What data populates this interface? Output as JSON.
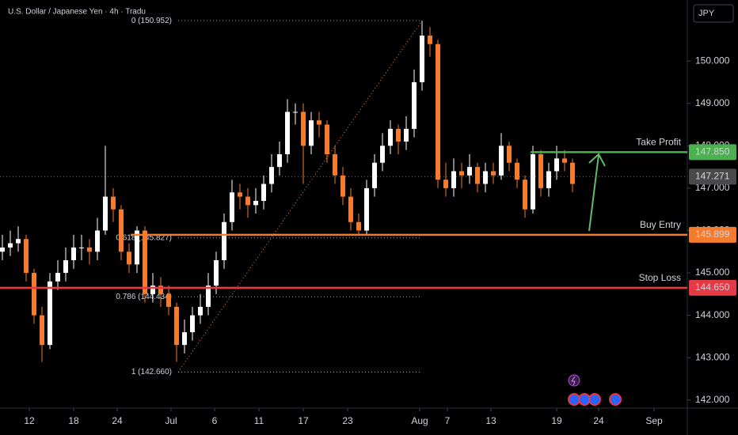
{
  "chart_data": {
    "type": "candlestick",
    "title": "U.S. Dollar / Japanese Yen · 4h · Tradu",
    "currency": "JPY",
    "up_color": "#ffffff",
    "down_color": "#f57c2e",
    "open": [
      145.5,
      145.6,
      145.7,
      145.8,
      145.0,
      144.0,
      143.3,
      144.8,
      145.0,
      145.3,
      145.6,
      145.6,
      145.5,
      146.0,
      146.8,
      146.5,
      145.5,
      145.2,
      146.0,
      144.5,
      144.7,
      144.5,
      144.2,
      143.3,
      143.6,
      144.0,
      144.2,
      144.7,
      145.3,
      146.2,
      146.9,
      146.8,
      146.6,
      146.7,
      147.1,
      147.5,
      147.8,
      148.8,
      148.8,
      148.0,
      148.6,
      148.5,
      147.8,
      147.3,
      146.8,
      146.2,
      146.0,
      147.0,
      147.6,
      148.0,
      148.4,
      148.1,
      148.4,
      149.5,
      150.6,
      150.4,
      147.2,
      147.0,
      147.4,
      147.3,
      147.5,
      147.1,
      147.4,
      147.3,
      148.0,
      147.6,
      147.2,
      146.5,
      147.8,
      147.0,
      147.4,
      147.7,
      147.6
    ],
    "high": [
      145.9,
      146.0,
      146.1,
      145.9,
      145.1,
      144.2,
      145.0,
      145.3,
      145.6,
      145.9,
      145.9,
      145.8,
      146.3,
      148.0,
      147.0,
      146.6,
      145.7,
      146.1,
      146.1,
      145.0,
      144.9,
      144.7,
      144.3,
      143.9,
      144.2,
      144.5,
      145.0,
      145.5,
      146.4,
      147.2,
      147.1,
      147.0,
      147.0,
      147.3,
      147.8,
      148.1,
      149.1,
      149.0,
      149.0,
      148.8,
      148.8,
      148.6,
      148.0,
      147.5,
      147.0,
      146.4,
      147.2,
      147.8,
      148.3,
      148.6,
      148.5,
      148.7,
      149.8,
      150.95,
      150.8,
      150.5,
      147.6,
      147.7,
      147.6,
      147.8,
      147.6,
      147.6,
      147.6,
      148.3,
      148.1,
      147.7,
      147.3,
      148.0,
      147.9,
      147.6,
      148.0,
      147.9,
      147.7
    ],
    "low": [
      145.3,
      145.4,
      145.5,
      144.8,
      143.8,
      142.9,
      143.2,
      144.6,
      144.8,
      145.1,
      145.3,
      145.2,
      145.3,
      145.9,
      146.2,
      145.3,
      145.0,
      145.0,
      144.3,
      144.3,
      144.2,
      144.0,
      142.9,
      143.1,
      143.4,
      143.8,
      144.0,
      144.5,
      145.1,
      146.0,
      146.5,
      146.3,
      146.4,
      146.5,
      146.9,
      147.3,
      147.6,
      148.5,
      147.1,
      147.8,
      148.2,
      147.6,
      147.1,
      146.6,
      146.0,
      145.9,
      145.9,
      146.8,
      147.4,
      147.8,
      147.8,
      147.9,
      148.2,
      149.3,
      150.1,
      147.0,
      146.8,
      146.8,
      147.0,
      147.1,
      146.9,
      146.9,
      147.1,
      147.2,
      147.4,
      147.0,
      146.3,
      146.4,
      146.8,
      146.8,
      147.2,
      147.4,
      146.9
    ],
    "close": [
      145.6,
      145.7,
      145.8,
      145.0,
      144.0,
      143.3,
      144.8,
      145.0,
      145.3,
      145.6,
      145.6,
      145.5,
      146.0,
      146.8,
      146.5,
      145.5,
      145.2,
      146.0,
      144.5,
      144.7,
      144.5,
      144.2,
      143.3,
      143.6,
      144.0,
      144.2,
      144.7,
      145.3,
      146.2,
      146.9,
      146.8,
      146.6,
      146.7,
      147.1,
      147.5,
      147.8,
      148.8,
      148.8,
      148.0,
      148.6,
      148.5,
      147.8,
      147.3,
      146.8,
      146.2,
      146.0,
      147.0,
      147.6,
      148.0,
      148.4,
      148.1,
      148.4,
      149.5,
      150.6,
      150.4,
      147.2,
      147.0,
      147.4,
      147.3,
      147.5,
      147.1,
      147.4,
      147.3,
      148.0,
      147.6,
      147.2,
      146.5,
      147.8,
      147.0,
      147.4,
      147.7,
      147.6,
      147.1
    ],
    "xlim": [
      -0.3,
      86.5
    ],
    "xticks": [
      {
        "value": 3.4,
        "label": "12"
      },
      {
        "value": 9,
        "label": "18"
      },
      {
        "value": 14.5,
        "label": "24"
      },
      {
        "value": 21.3,
        "label": "Jul"
      },
      {
        "value": 26.8,
        "label": "6"
      },
      {
        "value": 32.4,
        "label": "11"
      },
      {
        "value": 38,
        "label": "17"
      },
      {
        "value": 43.6,
        "label": "23"
      },
      {
        "value": 52.7,
        "label": "Aug"
      },
      {
        "value": 56.2,
        "label": "7"
      },
      {
        "value": 61.7,
        "label": "13"
      },
      {
        "value": 70,
        "label": "19"
      },
      {
        "value": 75.3,
        "label": "24"
      },
      {
        "value": 82.3,
        "label": "Sep"
      }
    ],
    "ylim": [
      141.81,
      151.44
    ],
    "yticks": [
      {
        "value": 142,
        "label": "142.000"
      },
      {
        "value": 143,
        "label": "143.000"
      },
      {
        "value": 144,
        "label": "144.000"
      },
      {
        "value": 145,
        "label": "145.000"
      },
      {
        "value": 146,
        "label": "146.000"
      },
      {
        "value": 147,
        "label": "147.000"
      },
      {
        "value": 148,
        "label": "148.000"
      },
      {
        "value": 149,
        "label": "149.000"
      },
      {
        "value": 150,
        "label": "150.000"
      }
    ],
    "levels": [
      {
        "name": "Take Profit",
        "value": 147.85,
        "label": "147.850",
        "color": "#4caf50"
      },
      {
        "name": "Buy Entry",
        "value": 145.899,
        "label": "145.899",
        "color": "#f57c2e"
      },
      {
        "name": "Stop Loss",
        "value": 144.65,
        "label": "144.650",
        "color": "#e53945"
      }
    ],
    "current_price": {
      "value": 147.271,
      "label": "147.271",
      "color": "#4a4a4a"
    },
    "fib": [
      {
        "value": 150.952,
        "label": "0 (150.952)"
      },
      {
        "value": 145.827,
        "label": "0.618 (145.827)"
      },
      {
        "value": 144.434,
        "label": "0.786 (144.434)"
      },
      {
        "value": 142.66,
        "label": "1 (142.660)"
      }
    ],
    "fib_color": "#f5862e"
  }
}
